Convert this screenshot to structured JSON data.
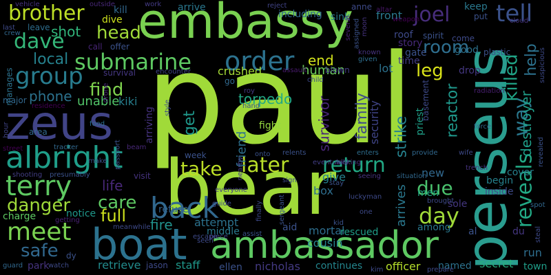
{
  "background": "#000000",
  "palette": {
    "lime": "#a0da39",
    "green": "#4ac16d",
    "bright_green": "#7ad151",
    "teal": "#1fa187",
    "teal_dark": "#277f8e",
    "blue": "#365c8d",
    "indigo": "#46327e",
    "purple": "#440154",
    "yellow": "#fde725"
  },
  "words": [
    {
      "text": "paul",
      "color": "#a0da39"
    },
    {
      "text": "bear",
      "color": "#a0da39"
    },
    {
      "text": "embassy",
      "color": "#7ad151"
    },
    {
      "text": "perseus",
      "color": "#2a9d8f"
    },
    {
      "text": "zeus",
      "color": "#414487"
    },
    {
      "text": "boat",
      "color": "#2c728e"
    },
    {
      "text": "ambassador",
      "color": "#5ec962"
    },
    {
      "text": "albright",
      "color": "#1f9e89"
    },
    {
      "text": "terry",
      "color": "#5ec962"
    },
    {
      "text": "meet",
      "color": "#7ad151"
    },
    {
      "text": "submarine",
      "color": "#5ec962"
    },
    {
      "text": "back",
      "color": "#31688e"
    },
    {
      "text": "order",
      "color": "#2c728e"
    },
    {
      "text": "brother",
      "color": "#bddf26"
    },
    {
      "text": "dave",
      "color": "#35b779"
    },
    {
      "text": "group",
      "color": "#287c8e"
    },
    {
      "text": "joel",
      "color": "#472d7b"
    },
    {
      "text": "tell",
      "color": "#3b528b"
    },
    {
      "text": "room",
      "color": "#2e6e8e"
    },
    {
      "text": "head",
      "color": "#a0da39"
    },
    {
      "text": "shot",
      "color": "#31b57b"
    },
    {
      "text": "local",
      "color": "#26828e"
    },
    {
      "text": "later",
      "color": "#b8de29"
    },
    {
      "text": "return",
      "color": "#22a884"
    },
    {
      "text": "take",
      "color": "#bddf26"
    },
    {
      "text": "care",
      "color": "#5ec962"
    },
    {
      "text": "full",
      "color": "#cde11d"
    },
    {
      "text": "danger",
      "color": "#9fda3a"
    },
    {
      "text": "safe",
      "color": "#31688e"
    },
    {
      "text": "day",
      "color": "#a0da39"
    },
    {
      "text": "due",
      "color": "#4ac16d"
    },
    {
      "text": "reveals",
      "color": "#22a884"
    },
    {
      "text": "way",
      "color": "#2a788e"
    },
    {
      "text": "killed",
      "color": "#20a486"
    },
    {
      "text": "help",
      "color": "#2c728e"
    },
    {
      "text": "destroyer",
      "color": "#1f9e89"
    },
    {
      "text": "reactor",
      "color": "#1f988b"
    },
    {
      "text": "leg",
      "color": "#d8e219"
    },
    {
      "text": "end",
      "color": "#d2e21b"
    },
    {
      "text": "find",
      "color": "#7fd34e"
    },
    {
      "text": "get",
      "color": "#1f988b"
    },
    {
      "text": "friend",
      "color": "#2d708e"
    },
    {
      "text": "survivor",
      "color": "#482576"
    },
    {
      "text": "strike",
      "color": "#26828e"
    },
    {
      "text": "family",
      "color": "#3e4a89"
    },
    {
      "text": "security",
      "color": "#404588"
    },
    {
      "text": "torpedo",
      "color": "#22a884"
    },
    {
      "text": "phone",
      "color": "#2c728e"
    },
    {
      "text": "unable",
      "color": "#52c569"
    },
    {
      "text": "kiki",
      "color": "#277f8e"
    },
    {
      "text": "crushed",
      "color": "#a5db36"
    },
    {
      "text": "human",
      "color": "#6ccd5a"
    },
    {
      "text": "fight",
      "color": "#95d840"
    },
    {
      "text": "life",
      "color": "#482878"
    },
    {
      "text": "fire",
      "color": "#21918c"
    },
    {
      "text": "attempt",
      "color": "#2c728e"
    },
    {
      "text": "notice",
      "color": "#1f988b"
    },
    {
      "text": "refuse",
      "color": "#33638d"
    },
    {
      "text": "charge",
      "color": "#5ec962"
    },
    {
      "text": "middle",
      "color": "#2a788e"
    },
    {
      "text": "mortal",
      "color": "#2e6e8e"
    },
    {
      "text": "cousin",
      "color": "#25848e"
    },
    {
      "text": "rescued",
      "color": "#1f9e89"
    },
    {
      "text": "aid",
      "color": "#3b528b"
    },
    {
      "text": "staff",
      "color": "#1f988b"
    },
    {
      "text": "retrieve",
      "color": "#228c8d"
    },
    {
      "text": "jason",
      "color": "#3e4a89"
    },
    {
      "text": "ellen",
      "color": "#3b528b"
    },
    {
      "text": "nicholas",
      "color": "#443a83"
    },
    {
      "text": "continues",
      "color": "#24868e"
    },
    {
      "text": "officer",
      "color": "#b5de2b"
    },
    {
      "text": "named",
      "color": "#2c728e"
    },
    {
      "text": "secret",
      "color": "#29af7f"
    },
    {
      "text": "run",
      "color": "#2e6e8e"
    },
    {
      "text": "town",
      "color": "#1f9e89"
    },
    {
      "text": "give",
      "color": "#26828e"
    },
    {
      "text": "box",
      "color": "#2e6e8e"
    },
    {
      "text": "arrives",
      "color": "#2a788e"
    },
    {
      "text": "new",
      "color": "#31688e"
    },
    {
      "text": "begin",
      "color": "#26828e"
    },
    {
      "text": "cover",
      "color": "#26828e"
    },
    {
      "text": "inside",
      "color": "#3e4a89"
    },
    {
      "text": "sole",
      "color": "#453781"
    },
    {
      "text": "among",
      "color": "#2a788e"
    },
    {
      "text": "al",
      "color": "#3b528b"
    },
    {
      "text": "du",
      "color": "#453781"
    },
    {
      "text": "men",
      "color": "#22a884"
    },
    {
      "text": "priest",
      "color": "#1fa088"
    },
    {
      "text": "basement",
      "color": "#3e4a89"
    },
    {
      "text": "lot",
      "color": "#2c728e"
    },
    {
      "text": "time",
      "color": "#433e85"
    },
    {
      "text": "story",
      "color": "#472a7a"
    },
    {
      "text": "gate",
      "color": "#3b528b"
    },
    {
      "text": "good",
      "color": "#2c728e"
    },
    {
      "text": "keep",
      "color": "#2a788e"
    },
    {
      "text": "front",
      "color": "#2a788e"
    },
    {
      "text": "sink",
      "color": "#2a788e"
    },
    {
      "text": "including",
      "color": "#31688e"
    },
    {
      "text": "kill",
      "color": "#31688e"
    },
    {
      "text": "arrive",
      "color": "#2a788e"
    },
    {
      "text": "work",
      "color": "#443b84"
    },
    {
      "text": "dive",
      "color": "#cde11d"
    },
    {
      "text": "call",
      "color": "#482576"
    },
    {
      "text": "offer",
      "color": "#3b528b"
    },
    {
      "text": "survival",
      "color": "#453781"
    },
    {
      "text": "encounter",
      "color": "#414487"
    },
    {
      "text": "arriving",
      "color": "#46337f"
    },
    {
      "text": "drone",
      "color": "#482576"
    },
    {
      "text": "leave",
      "color": "#2e6e8e"
    },
    {
      "text": "vehicle",
      "color": "#46327e"
    },
    {
      "text": "outside",
      "color": "#482878"
    },
    {
      "text": "reject",
      "color": "#414487"
    },
    {
      "text": "anne",
      "color": "#3e4a89"
    },
    {
      "text": "altar",
      "color": "#481769"
    },
    {
      "text": "weapon",
      "color": "#440154"
    },
    {
      "text": "crew",
      "color": "#31688e"
    },
    {
      "text": "several",
      "color": "#482173"
    },
    {
      "text": "assigned",
      "color": "#3b528b"
    },
    {
      "text": "moon",
      "color": "#46337f"
    },
    {
      "text": "roof",
      "color": "#3e4a89"
    },
    {
      "text": "spirit",
      "color": "#3b528b"
    },
    {
      "text": "come",
      "color": "#3e4a89"
    },
    {
      "text": "plastic",
      "color": "#3b528b"
    },
    {
      "text": "suspicious",
      "color": "#3e4a89"
    },
    {
      "text": "known",
      "color": "#46337f"
    },
    {
      "text": "given",
      "color": "#2e6e8e"
    },
    {
      "text": "blown",
      "color": "#433e85"
    },
    {
      "text": "assault",
      "color": "#481a6c"
    },
    {
      "text": "child",
      "color": "#3e4a89"
    },
    {
      "text": "drop",
      "color": "#453781"
    },
    {
      "text": "radiation",
      "color": "#481f70"
    },
    {
      "text": "put",
      "color": "#3b528b"
    },
    {
      "text": "cloud",
      "color": "#46337f"
    },
    {
      "text": "prepare",
      "color": "#3e4a89"
    },
    {
      "text": "manages",
      "color": "#2c728e"
    },
    {
      "text": "major",
      "color": "#31688e"
    },
    {
      "text": "residence",
      "color": "#440154"
    },
    {
      "text": "hour",
      "color": "#414487"
    },
    {
      "text": "area",
      "color": "#31688e"
    },
    {
      "text": "street",
      "color": "#440154"
    },
    {
      "text": "food",
      "color": "#2e6e8e"
    },
    {
      "text": "passport",
      "color": "#3b528b"
    },
    {
      "text": "tracker",
      "color": "#31688e"
    },
    {
      "text": "beam",
      "color": "#482878"
    },
    {
      "text": "make",
      "color": "#3b528b"
    },
    {
      "text": "shooting",
      "color": "#433e85"
    },
    {
      "text": "presumably",
      "color": "#3b528b"
    },
    {
      "text": "getting",
      "color": "#482173"
    },
    {
      "text": "meanwhile",
      "color": "#3e4a89"
    },
    {
      "text": "guard",
      "color": "#31688e"
    },
    {
      "text": "park",
      "color": "#46337f"
    },
    {
      "text": "watch",
      "color": "#3e4a89"
    },
    {
      "text": "dy",
      "color": "#3b528b"
    },
    {
      "text": "escape",
      "color": "#3e4a89"
    },
    {
      "text": "piece",
      "color": "#414487"
    },
    {
      "text": "seen",
      "color": "#3e4a89"
    },
    {
      "text": "assist",
      "color": "#3b528b"
    },
    {
      "text": "guide",
      "color": "#3e4a89"
    },
    {
      "text": "everyone",
      "color": "#433e85"
    },
    {
      "text": "nearby",
      "color": "#443a83"
    },
    {
      "text": "visit",
      "color": "#46337f"
    },
    {
      "text": "week",
      "color": "#3b528b"
    },
    {
      "text": "style",
      "color": "#3e4a89"
    },
    {
      "text": "go",
      "color": "#31688e"
    },
    {
      "text": "roy",
      "color": "#443a83"
    },
    {
      "text": "hand",
      "color": "#3b528b"
    },
    {
      "text": "sign",
      "color": "#3e4a89"
    },
    {
      "text": "onto",
      "color": "#3b528b"
    },
    {
      "text": "finally",
      "color": "#3e4a89"
    },
    {
      "text": "sergeant",
      "color": "#3b528b"
    },
    {
      "text": "relents",
      "color": "#3b528b"
    },
    {
      "text": "enters",
      "color": "#2e6e8e"
    },
    {
      "text": "eventually",
      "color": "#433e85"
    },
    {
      "text": "looking",
      "color": "#46337f"
    },
    {
      "text": "stay",
      "color": "#3b528b"
    },
    {
      "text": "seeing",
      "color": "#46337f"
    },
    {
      "text": "situation",
      "color": "#31688e"
    },
    {
      "text": "luckyman",
      "color": "#3e4a89"
    },
    {
      "text": "one",
      "color": "#3e4a89"
    },
    {
      "text": "kid",
      "color": "#3b528b"
    },
    {
      "text": "provide",
      "color": "#31688e"
    },
    {
      "text": "wife",
      "color": "#3e4a89"
    },
    {
      "text": "trench",
      "color": "#46337f"
    },
    {
      "text": "brought",
      "color": "#3e4a89"
    },
    {
      "text": "spot",
      "color": "#31688e"
    },
    {
      "text": "force",
      "color": "#31688e"
    },
    {
      "text": "revealed",
      "color": "#3b528b"
    },
    {
      "text": "steal",
      "color": "#3e4a89"
    },
    {
      "text": "kim",
      "color": "#3e4a89"
    },
    {
      "text": "last",
      "color": "#3e4a89"
    }
  ]
}
